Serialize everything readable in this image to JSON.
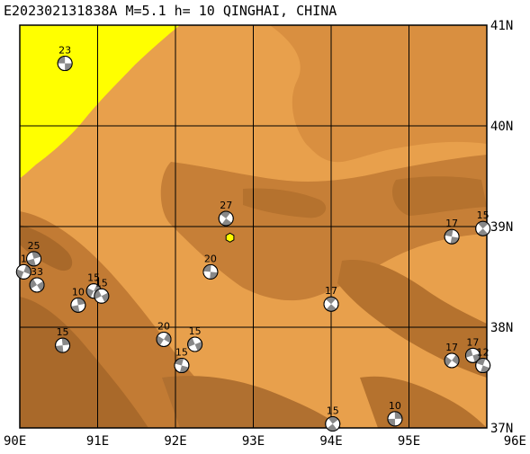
{
  "title": "E202302131838A M=5.1 h= 10 QINGHAI, CHINA",
  "lon_labels": [
    "90E",
    "91E",
    "92E",
    "93E",
    "94E",
    "95E",
    "96E"
  ],
  "lat_labels": [
    "41N",
    "40N",
    "39N",
    "38N",
    "37N"
  ],
  "lon_range": [
    90,
    96
  ],
  "lat_range": [
    37,
    41
  ],
  "colors": {
    "frame": "#000000",
    "grid": "#000000",
    "yellow": "#ffff00",
    "tan_light": "#e8a04c",
    "tan_mid": "#cf8a3e",
    "tan_dark": "#b5722e",
    "tan_darkest": "#9a5e24",
    "mechanism_fill": "#888888",
    "event_marker": "#ffff00"
  },
  "main_event": {
    "lon": 92.7,
    "lat": 38.89,
    "icon": "hexagon-icon"
  },
  "mechanisms": [
    {
      "label": "23",
      "lon": 90.58,
      "lat": 40.62
    },
    {
      "label": "27",
      "lon": 92.65,
      "lat": 39.08
    },
    {
      "label": "25",
      "lon": 90.18,
      "lat": 38.68
    },
    {
      "label": "1",
      "lon": 90.05,
      "lat": 38.55
    },
    {
      "label": "33",
      "lon": 90.22,
      "lat": 38.42
    },
    {
      "label": "20",
      "lon": 92.45,
      "lat": 38.55
    },
    {
      "label": "17",
      "lon": 94.0,
      "lat": 38.23
    },
    {
      "label": "10",
      "lon": 90.75,
      "lat": 38.22
    },
    {
      "label": "15",
      "lon": 90.95,
      "lat": 38.36
    },
    {
      "label": "15",
      "lon": 91.05,
      "lat": 38.31
    },
    {
      "label": "17",
      "lon": 95.55,
      "lat": 38.9
    },
    {
      "label": "15",
      "lon": 95.95,
      "lat": 38.98
    },
    {
      "label": "15",
      "lon": 90.55,
      "lat": 37.82
    },
    {
      "label": "20",
      "lon": 91.85,
      "lat": 37.88
    },
    {
      "label": "15",
      "lon": 92.25,
      "lat": 37.83
    },
    {
      "label": "15",
      "lon": 92.08,
      "lat": 37.62
    },
    {
      "label": "15",
      "lon": 94.02,
      "lat": 37.04
    },
    {
      "label": "10",
      "lon": 94.82,
      "lat": 37.09
    },
    {
      "label": "17",
      "lon": 95.55,
      "lat": 37.67
    },
    {
      "label": "17",
      "lon": 95.82,
      "lat": 37.72
    },
    {
      "label": "12",
      "lon": 95.95,
      "lat": 37.62
    }
  ]
}
